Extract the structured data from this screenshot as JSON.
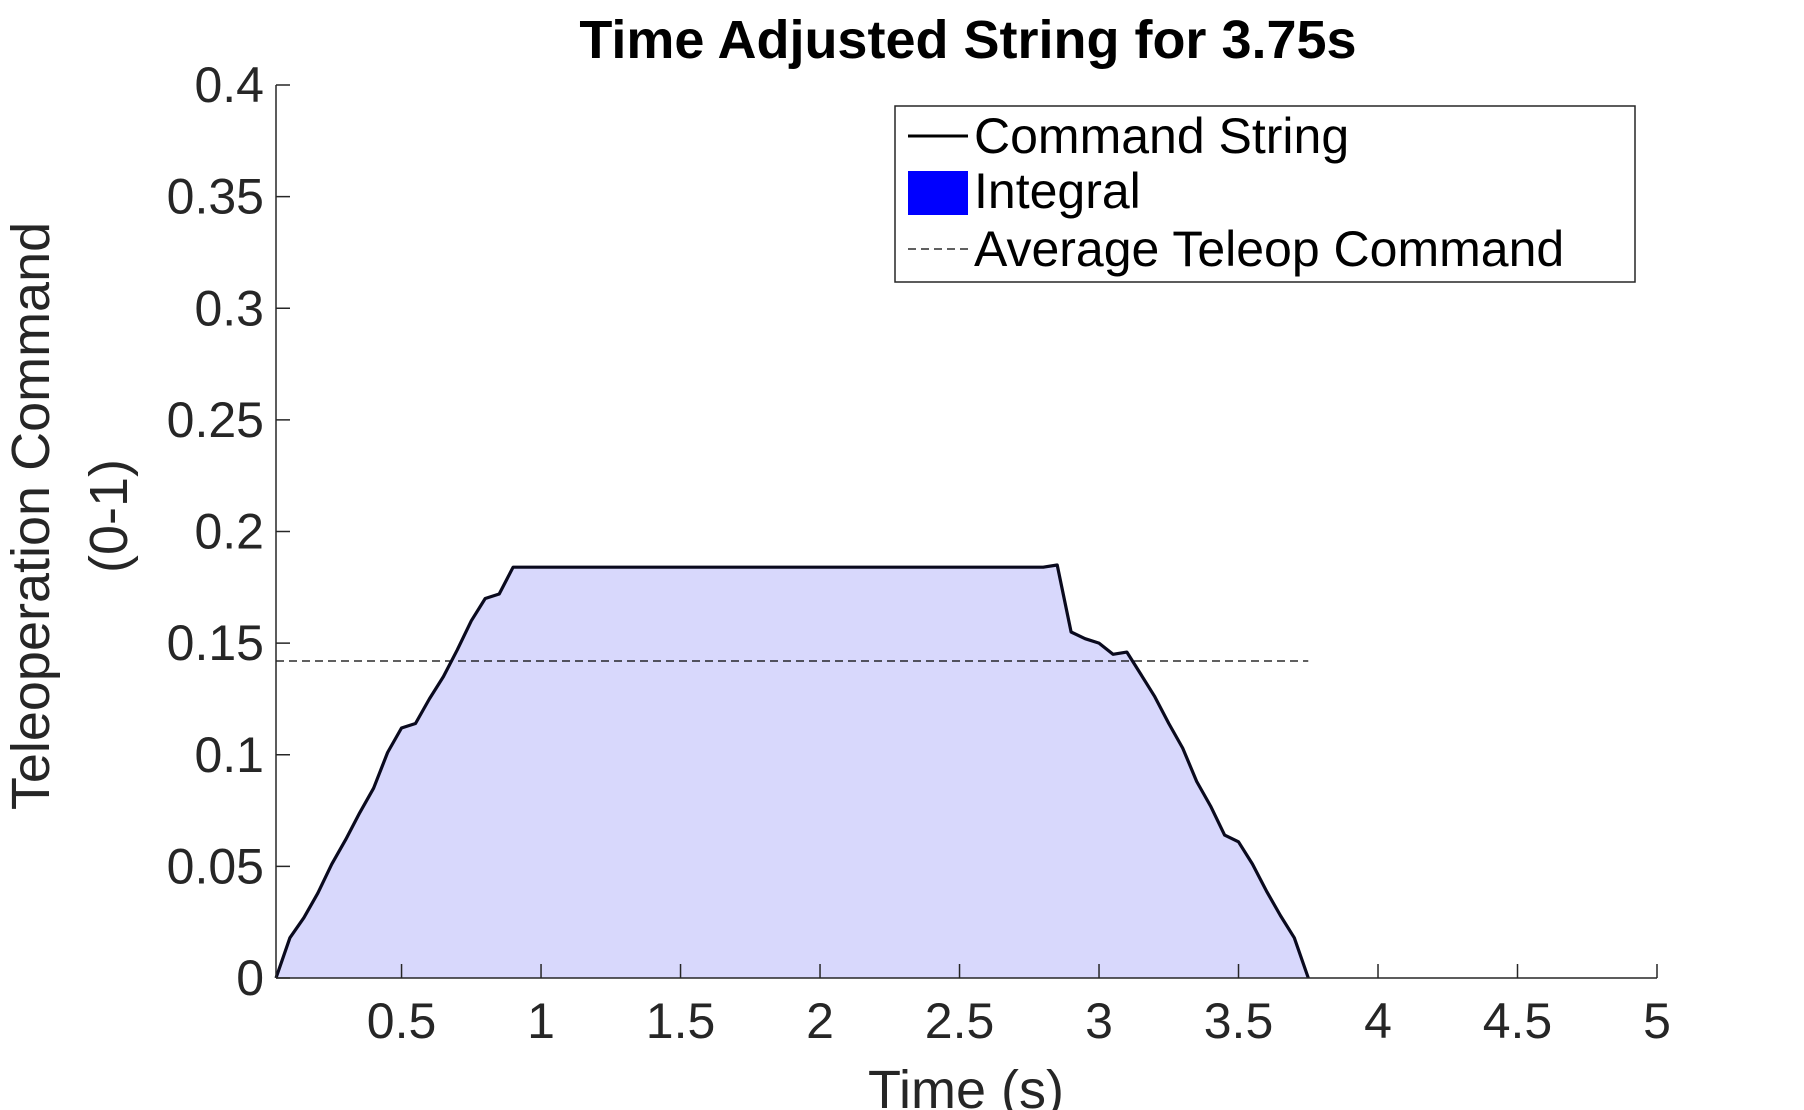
{
  "chart_data": {
    "type": "area",
    "title": "Time Adjusted String for 3.75s",
    "xlabel": "Time (s)",
    "ylabel_lines": [
      "Teleoperation Command",
      "(0-1)"
    ],
    "xlim": [
      0.05,
      5
    ],
    "ylim": [
      0,
      0.4
    ],
    "xticks": [
      0.5,
      1,
      1.5,
      2,
      2.5,
      3,
      3.5,
      4,
      4.5,
      5
    ],
    "xtick_labels": [
      "0.5",
      "1",
      "1.5",
      "2",
      "2.5",
      "3",
      "3.5",
      "4",
      "4.5",
      "5"
    ],
    "yticks": [
      0,
      0.05,
      0.1,
      0.15,
      0.2,
      0.25,
      0.3,
      0.35,
      0.4
    ],
    "ytick_labels": [
      "0",
      "0.05",
      "0.1",
      "0.15",
      "0.2",
      "0.25",
      "0.3",
      "0.35",
      "0.4"
    ],
    "grid": false,
    "legend_position": "top-right",
    "series": [
      {
        "name": "Command String",
        "kind": "line",
        "color": "#000000",
        "x": [
          0.05,
          0.1,
          0.15,
          0.2,
          0.25,
          0.3,
          0.35,
          0.4,
          0.45,
          0.5,
          0.55,
          0.6,
          0.65,
          0.7,
          0.75,
          0.8,
          0.85,
          0.9,
          0.95,
          1.0,
          1.5,
          2.0,
          2.5,
          2.8,
          2.85,
          2.9,
          2.95,
          3.0,
          3.05,
          3.1,
          3.15,
          3.2,
          3.25,
          3.3,
          3.35,
          3.4,
          3.45,
          3.5,
          3.55,
          3.6,
          3.65,
          3.7,
          3.75
        ],
        "y": [
          0.0,
          0.018,
          0.027,
          0.038,
          0.051,
          0.062,
          0.074,
          0.085,
          0.101,
          0.112,
          0.114,
          0.125,
          0.135,
          0.147,
          0.16,
          0.17,
          0.172,
          0.184,
          0.184,
          0.184,
          0.184,
          0.184,
          0.184,
          0.184,
          0.185,
          0.155,
          0.152,
          0.15,
          0.145,
          0.146,
          0.136,
          0.126,
          0.114,
          0.103,
          0.088,
          0.077,
          0.064,
          0.061,
          0.051,
          0.039,
          0.028,
          0.018,
          0.0
        ]
      },
      {
        "name": "Integral",
        "kind": "area",
        "color": "#0000ff",
        "fill_color": "#d8d8fc"
      },
      {
        "name": "Average Teleop Command",
        "kind": "hline",
        "color": "#000000",
        "dashed": true,
        "y": 0.142,
        "x_range": [
          0.05,
          3.75
        ]
      }
    ]
  }
}
